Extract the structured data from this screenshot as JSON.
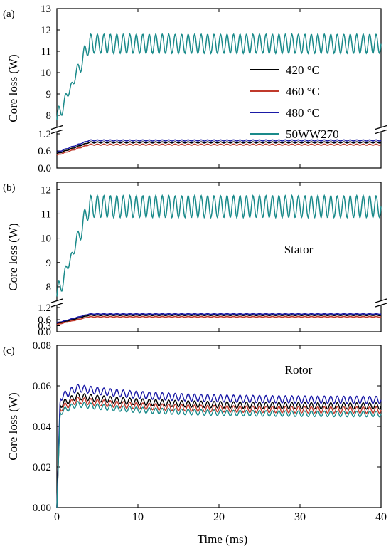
{
  "figure": {
    "xlabel": "Time (ms)",
    "xticks": [
      "0",
      "10",
      "20",
      "30",
      "40"
    ]
  },
  "chart_data": [
    {
      "type": "line",
      "panel_label": "(a)",
      "annotation": "",
      "ylabel": "Core loss (W)",
      "xlim": [
        0,
        40
      ],
      "broken_y_axis": true,
      "ylim_upper": [
        7.5,
        13
      ],
      "yticks_upper": [
        "8",
        "9",
        "10",
        "11",
        "12",
        "13"
      ],
      "ylim_lower": [
        0,
        1.2
      ],
      "yticks_lower": [
        "0.0",
        "0.6",
        "1.2"
      ],
      "legend": {
        "position": "middle-right",
        "entries": [
          {
            "label": "420 °C",
            "color": "#000000"
          },
          {
            "label": "460 °C",
            "color": "#c0392b"
          },
          {
            "label": "480 °C",
            "color": "#1a1aa6"
          },
          {
            "label": "50WW270",
            "color": "#1a8a8a"
          }
        ]
      },
      "series": [
        {
          "name": "420 °C",
          "color": "#000000",
          "kind": "low",
          "start": 0.5,
          "steady": 0.9,
          "ripple": 0.02,
          "rise_ms": 4
        },
        {
          "name": "460 °C",
          "color": "#c0392b",
          "kind": "low",
          "start": 0.45,
          "steady": 0.82,
          "ripple": 0.02,
          "rise_ms": 4
        },
        {
          "name": "480 °C",
          "color": "#1a1aa6",
          "kind": "low",
          "start": 0.55,
          "steady": 0.97,
          "ripple": 0.02,
          "rise_ms": 4
        },
        {
          "name": "50WW270",
          "color": "#1a8a8a",
          "kind": "high",
          "start": 7.8,
          "steady": 11.35,
          "ripple": 0.45,
          "rise_ms": 4
        }
      ]
    },
    {
      "type": "line",
      "panel_label": "(b)",
      "annotation": "Stator",
      "ylabel": "Core loss (W)",
      "xlim": [
        0,
        40
      ],
      "broken_y_axis": true,
      "ylim_upper": [
        7.5,
        12.3
      ],
      "yticks_upper": [
        "8",
        "9",
        "10",
        "11",
        "12"
      ],
      "ylim_lower": [
        0,
        1.2
      ],
      "yticks_lower": [
        "0.0",
        "0.3",
        "0.6",
        "1.2"
      ],
      "series": [
        {
          "name": "420 °C",
          "color": "#000000",
          "kind": "low",
          "start": 0.4,
          "steady": 0.82,
          "ripple": 0.015,
          "rise_ms": 4
        },
        {
          "name": "460 °C",
          "color": "#c0392b",
          "kind": "low",
          "start": 0.36,
          "steady": 0.74,
          "ripple": 0.015,
          "rise_ms": 4
        },
        {
          "name": "480 °C",
          "color": "#1a1aa6",
          "kind": "low",
          "start": 0.44,
          "steady": 0.88,
          "ripple": 0.015,
          "rise_ms": 4
        },
        {
          "name": "50WW270",
          "color": "#1a8a8a",
          "kind": "high",
          "start": 7.6,
          "steady": 11.3,
          "ripple": 0.45,
          "rise_ms": 4
        }
      ]
    },
    {
      "type": "line",
      "panel_label": "(c)",
      "annotation": "Rotor",
      "ylabel": "Core loss (W)",
      "xlim": [
        0,
        40
      ],
      "broken_y_axis": false,
      "ylim": [
        0,
        0.08
      ],
      "yticks": [
        "0.00",
        "0.02",
        "0.04",
        "0.06",
        "0.08"
      ],
      "series": [
        {
          "name": "420 °C",
          "color": "#000000",
          "peak": 0.055,
          "steady": 0.05,
          "ripple": 0.0016
        },
        {
          "name": "460 °C",
          "color": "#c0392b",
          "peak": 0.053,
          "steady": 0.048,
          "ripple": 0.0016
        },
        {
          "name": "480 °C",
          "color": "#1a1aa6",
          "peak": 0.059,
          "steady": 0.053,
          "ripple": 0.0018
        },
        {
          "name": "50WW270",
          "color": "#1a8a8a",
          "peak": 0.051,
          "steady": 0.046,
          "ripple": 0.0014
        }
      ]
    }
  ]
}
